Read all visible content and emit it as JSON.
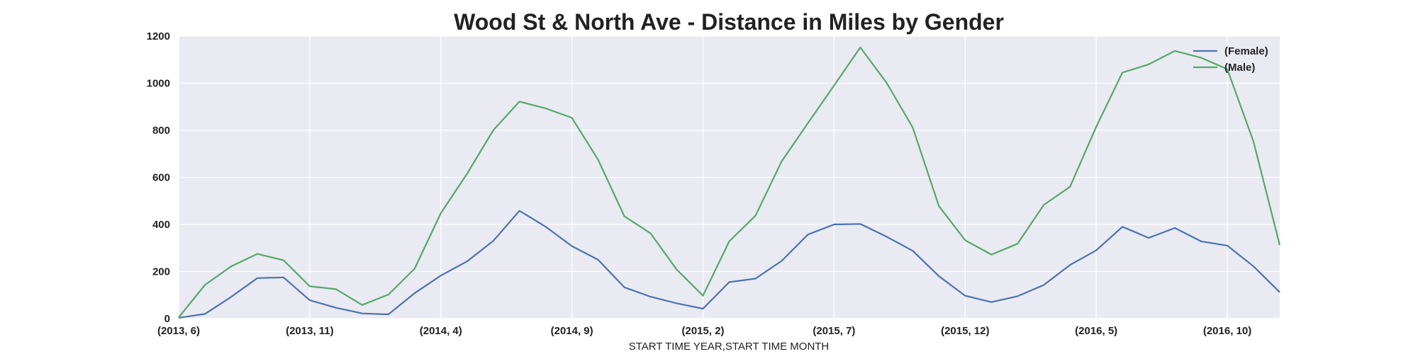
{
  "chart_data": {
    "type": "line",
    "title": "Wood St & North Ave - Distance in Miles by Gender",
    "xlabel": "START TIME YEAR,START TIME MONTH",
    "ylabel": "",
    "ylim": [
      0,
      1200
    ],
    "yticks": [
      0,
      200,
      400,
      600,
      800,
      1000,
      1200
    ],
    "x": [
      "(2013, 6)",
      "(2013, 7)",
      "(2013, 8)",
      "(2013, 9)",
      "(2013, 10)",
      "(2013, 11)",
      "(2013, 12)",
      "(2014, 1)",
      "(2014, 2)",
      "(2014, 3)",
      "(2014, 4)",
      "(2014, 5)",
      "(2014, 6)",
      "(2014, 7)",
      "(2014, 8)",
      "(2014, 9)",
      "(2014, 10)",
      "(2014, 11)",
      "(2014, 12)",
      "(2015, 1)",
      "(2015, 2)",
      "(2015, 3)",
      "(2015, 4)",
      "(2015, 5)",
      "(2015, 6)",
      "(2015, 7)",
      "(2015, 8)",
      "(2015, 9)",
      "(2015, 10)",
      "(2015, 11)",
      "(2015, 12)",
      "(2016, 1)",
      "(2016, 2)",
      "(2016, 3)",
      "(2016, 4)",
      "(2016, 5)",
      "(2016, 6)",
      "(2016, 7)",
      "(2016, 8)",
      "(2016, 9)",
      "(2016, 10)",
      "(2016, 11)",
      "(2016, 12)"
    ],
    "xtick_labels": [
      "(2013, 6)",
      "(2013, 11)",
      "(2014, 4)",
      "(2014, 9)",
      "(2015, 2)",
      "(2015, 7)",
      "(2015, 12)",
      "(2016, 5)",
      "(2016, 10)"
    ],
    "series": [
      {
        "name": "(Female)",
        "color": "#4c72b0",
        "values": [
          3,
          20,
          92,
          172,
          175,
          78,
          46,
          22,
          18,
          108,
          183,
          243,
          330,
          458,
          390,
          308,
          250,
          133,
          93,
          65,
          42,
          155,
          170,
          245,
          357,
          400,
          402,
          348,
          288,
          180,
          97,
          70,
          95,
          143,
          228,
          290,
          390,
          343,
          385,
          328,
          310,
          222,
          112
        ]
      },
      {
        "name": "(Male)",
        "color": "#55a868",
        "values": [
          5,
          143,
          222,
          275,
          248,
          137,
          125,
          58,
          102,
          212,
          448,
          615,
          800,
          922,
          893,
          853,
          675,
          435,
          362,
          208,
          97,
          328,
          437,
          668,
          830,
          990,
          1152,
          1002,
          812,
          478,
          333,
          272,
          318,
          483,
          560,
          815,
          1045,
          1080,
          1137,
          1108,
          1060,
          752,
          312
        ]
      }
    ],
    "grid": true,
    "legend_position": "top-right"
  },
  "colors": {
    "plot_background": "#eaeaf2",
    "grid": "#ffffff",
    "text": "#222222"
  }
}
